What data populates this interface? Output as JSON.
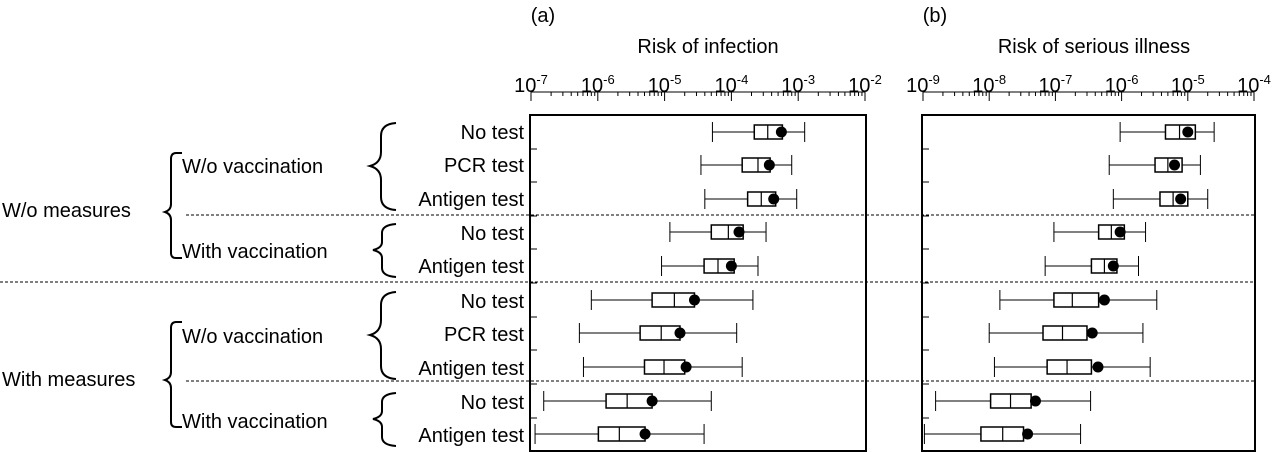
{
  "chart_data": [
    {
      "type": "boxplot",
      "panel_label": "(a)",
      "title": "Risk of infection",
      "xscale": "log",
      "xlim": [
        1e-07,
        0.01
      ],
      "ticks": [
        {
          "base": "10",
          "exp": "-7"
        },
        {
          "base": "10",
          "exp": "-6"
        },
        {
          "base": "10",
          "exp": "-5"
        },
        {
          "base": "10",
          "exp": "-4"
        },
        {
          "base": "10",
          "exp": "-3"
        },
        {
          "base": "10",
          "exp": "-2"
        }
      ],
      "rows": [
        {
          "min": 5.2e-05,
          "q1": 0.00022,
          "median": 0.00035,
          "q3": 0.00058,
          "max": 0.00125,
          "mean": 0.00056
        },
        {
          "min": 3.5e-05,
          "q1": 0.000145,
          "median": 0.00025,
          "q3": 0.00038,
          "max": 0.0008,
          "mean": 0.00037
        },
        {
          "min": 4e-05,
          "q1": 0.000175,
          "median": 0.00028,
          "q3": 0.00046,
          "max": 0.00095,
          "mean": 0.00043
        },
        {
          "min": 1.2e-05,
          "q1": 5e-05,
          "median": 9e-05,
          "q3": 0.00015,
          "max": 0.00033,
          "mean": 0.00013
        },
        {
          "min": 9e-06,
          "q1": 3.9e-05,
          "median": 6.3e-05,
          "q3": 0.00011,
          "max": 0.00025,
          "mean": 0.0001
        },
        {
          "min": 8e-07,
          "q1": 6.5e-06,
          "median": 1.4e-05,
          "q3": 2.8e-05,
          "max": 0.00021,
          "mean": 2.8e-05
        },
        {
          "min": 5.3e-07,
          "q1": 4.3e-06,
          "median": 8.9e-06,
          "q3": 1.7e-05,
          "max": 0.00012,
          "mean": 1.7e-05
        },
        {
          "min": 6.1e-07,
          "q1": 5e-06,
          "median": 9.8e-06,
          "q3": 2e-05,
          "max": 0.000145,
          "mean": 2.1e-05
        },
        {
          "min": 1.55e-07,
          "q1": 1.33e-06,
          "median": 2.75e-06,
          "q3": 6.5e-06,
          "max": 5e-05,
          "mean": 6.5e-06
        },
        {
          "min": 1.15e-07,
          "q1": 1.02e-06,
          "median": 2.1e-06,
          "q3": 5.1e-06,
          "max": 3.9e-05,
          "mean": 5.1e-06
        }
      ]
    },
    {
      "type": "boxplot",
      "panel_label": "(b)",
      "title": "Risk of serious illness",
      "xscale": "log",
      "xlim": [
        1e-09,
        0.0001
      ],
      "ticks": [
        {
          "base": "10",
          "exp": "-9"
        },
        {
          "base": "10",
          "exp": "-8"
        },
        {
          "base": "10",
          "exp": "-7"
        },
        {
          "base": "10",
          "exp": "-6"
        },
        {
          "base": "10",
          "exp": "-5"
        },
        {
          "base": "10",
          "exp": "-4"
        }
      ],
      "rows": [
        {
          "min": 9.5e-07,
          "q1": 4.6e-06,
          "median": 7.5e-06,
          "q3": 1.3e-05,
          "max": 2.5e-05,
          "mean": 1e-05
        },
        {
          "min": 6.5e-07,
          "q1": 3.2e-06,
          "median": 5e-06,
          "q3": 8.2e-06,
          "max": 1.55e-05,
          "mean": 6.3e-06
        },
        {
          "min": 7.5e-07,
          "q1": 3.8e-06,
          "median": 6e-06,
          "q3": 1e-05,
          "max": 2e-05,
          "mean": 7.8e-06
        },
        {
          "min": 9.5e-08,
          "q1": 4.5e-07,
          "median": 7e-07,
          "q3": 1.1e-06,
          "max": 2.3e-06,
          "mean": 9.5e-07
        },
        {
          "min": 7e-08,
          "q1": 3.5e-07,
          "median": 5.5e-07,
          "q3": 8.5e-07,
          "max": 1.8e-06,
          "mean": 7.5e-07
        },
        {
          "min": 1.45e-08,
          "q1": 9.5e-08,
          "median": 1.8e-07,
          "q3": 4.5e-07,
          "max": 3.4e-06,
          "mean": 5.5e-07
        },
        {
          "min": 1e-08,
          "q1": 6.5e-08,
          "median": 1.28e-07,
          "q3": 3e-07,
          "max": 2.1e-06,
          "mean": 3.6e-07
        },
        {
          "min": 1.2e-08,
          "q1": 7.5e-08,
          "median": 1.5e-07,
          "q3": 3.5e-07,
          "max": 2.7e-06,
          "mean": 4.4e-07
        },
        {
          "min": 1.55e-09,
          "q1": 1.05e-08,
          "median": 2.1e-08,
          "q3": 4.3e-08,
          "max": 3.4e-07,
          "mean": 5e-08
        },
        {
          "min": 1.05e-09,
          "q1": 7.5e-09,
          "median": 1.6e-08,
          "q3": 3.3e-08,
          "max": 2.4e-07,
          "mean": 3.8e-08
        }
      ]
    }
  ],
  "row_labels": [
    "No test",
    "PCR test",
    "Antigen test",
    "No test",
    "Antigen test",
    "No test",
    "PCR test",
    "Antigen test",
    "No test",
    "Antigen test"
  ],
  "groups": {
    "vaccination_labels": [
      "W/o vaccination",
      "With vaccination",
      "W/o vaccination",
      "With vaccination"
    ],
    "measure_labels": [
      "W/o measures",
      "With measures"
    ]
  }
}
